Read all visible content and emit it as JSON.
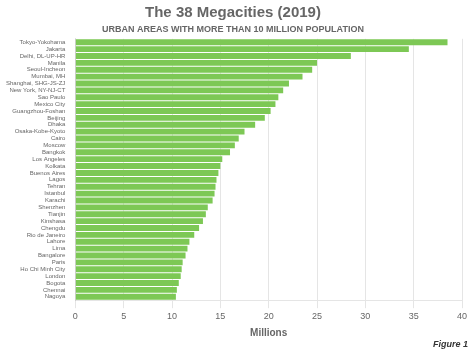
{
  "chart_data": {
    "type": "bar",
    "orientation": "horizontal",
    "title": "The 38 Megacities (2019)",
    "subtitle": "URBAN AREAS WITH MORE THAN 10 MILLION POPULATION",
    "xlabel": "Millions",
    "annotations": [
      "Figure 1"
    ],
    "color": "#7dc855",
    "grid": true,
    "categories": [
      "Tokyo-Yokohama",
      "Jakarta",
      "Delhi, DL-UP-HR",
      "Manila",
      "Seoul-Incheon",
      "Mumbai, MH",
      "Shanghai, SHG-JS-ZJ",
      "New York, NY-NJ-CT",
      "Sao Paulo",
      "Mexico City",
      "Guangzhou-Foshan",
      "Beijing",
      "Dhaka",
      "Osaka-Kobe-Kyoto",
      "Cairo",
      "Moscow",
      "Bangkok",
      "Los Angeles",
      "Kolkata",
      "Buenos Aires",
      "Lagos",
      "Tehran",
      "Istanbul",
      "Karachi",
      "Shenzhen",
      "Tianjin",
      "Kinshasa",
      "Chengdu",
      "Rio de Janeiro",
      "Lahore",
      "Lima",
      "Bangalore",
      "Paris",
      "Ho Chi Minh City",
      "London",
      "Bogota",
      "Chennai",
      "Nagoya"
    ],
    "values": [
      38.5,
      34.5,
      28.5,
      25.0,
      24.5,
      23.5,
      22.1,
      21.5,
      21.0,
      20.7,
      20.2,
      19.6,
      18.6,
      17.5,
      16.9,
      16.5,
      16.0,
      15.2,
      15.0,
      14.8,
      14.6,
      14.5,
      14.4,
      14.2,
      13.7,
      13.5,
      13.2,
      12.8,
      12.3,
      11.8,
      11.6,
      11.4,
      11.1,
      11.0,
      10.9,
      10.7,
      10.5,
      10.4
    ],
    "xlim": [
      0,
      40
    ],
    "xticks": [
      0,
      5,
      10,
      15,
      20,
      25,
      30,
      35,
      40
    ]
  }
}
